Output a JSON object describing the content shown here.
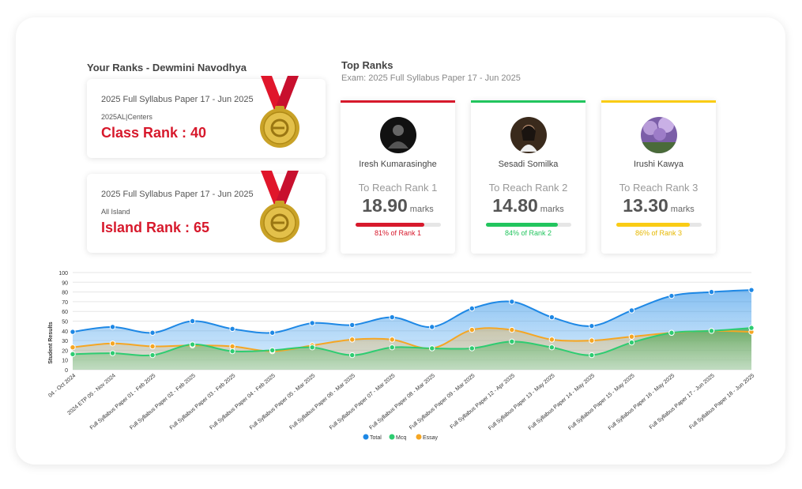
{
  "your_ranks": {
    "title": "Your Ranks - Dewmini Navodhya",
    "cards": [
      {
        "exam": "2025 Full Syllabus Paper 17 - Jun 2025",
        "category": "2025AL|Centers",
        "rank_label": "Class Rank : 40"
      },
      {
        "exam": "2025 Full Syllabus Paper 17 - Jun 2025",
        "category": "All Island",
        "rank_label": "Island Rank : 65"
      }
    ]
  },
  "top_ranks": {
    "title": "Top Ranks",
    "subtitle": "Exam: 2025 Full Syllabus Paper 17 - Jun 2025",
    "cards": [
      {
        "name": "Iresh Kumarasinghe",
        "reach": "To Reach Rank 1",
        "marks": "18.90",
        "unit": "marks",
        "percent_label": "81% of Rank 1",
        "percent": 81,
        "color": "#d7192c"
      },
      {
        "name": "Sesadi Somilka",
        "reach": "To Reach Rank 2",
        "marks": "14.80",
        "unit": "marks",
        "percent_label": "84% of Rank 2",
        "percent": 84,
        "color": "#22c55e"
      },
      {
        "name": "Irushi Kawya",
        "reach": "To Reach Rank 3",
        "marks": "13.30",
        "unit": "marks",
        "percent_label": "86% of Rank 3",
        "percent": 86,
        "color": "#facc15"
      }
    ]
  },
  "chart_data": {
    "type": "area",
    "title": "",
    "xlabel": "",
    "ylabel": "Student Results",
    "ylim": [
      0,
      100
    ],
    "yticks": [
      0,
      10,
      20,
      30,
      40,
      50,
      60,
      70,
      80,
      90,
      100
    ],
    "categories": [
      "04 - Oct 2024",
      "2024 ETP 05 - Nov 2024",
      "Full Syllabus Paper 01 - Feb 2025",
      "Full Syllabus Paper 02 - Feb 2025",
      "Full Syllabus Paper 03 - Feb 2025",
      "Full Syllabus Paper 04 - Feb 2025",
      "Full Syllabus Paper 05 - Mar 2025",
      "Full Syllabus Paper 06 - Mar 2025",
      "Full Syllabus Paper 07 - Mar 2025",
      "Full Syllabus Paper 08 - Mar 2025",
      "Full Syllabus Paper 09 - Mar 2025",
      "Full Syllabus Paper 12 - Apr 2025",
      "Full Syllabus Paper 13 - May 2025",
      "Full Syllabus Paper 14 - May 2025",
      "Full Syllabus Paper 15 - May 2025",
      "Full Syllabus Paper 16 - May 2025",
      "Full Syllabus Paper 17 - Jun 2025",
      "Full Syllabus Paper 18 - Jun 2025"
    ],
    "series": [
      {
        "name": "Total",
        "color": "#1e88e5",
        "values": [
          39,
          44,
          38,
          50,
          42,
          38,
          48,
          46,
          54,
          44,
          63,
          70,
          54,
          45,
          61,
          76,
          80,
          82
        ]
      },
      {
        "name": "Mcq",
        "color": "#2ecc71",
        "values": [
          16,
          17,
          15,
          26,
          19,
          20,
          23,
          15,
          23,
          22,
          22,
          29,
          23,
          15,
          28,
          38,
          40,
          43
        ]
      },
      {
        "name": "Essay",
        "color": "#f5a623",
        "values": [
          23,
          27,
          24,
          25,
          24,
          19,
          25,
          31,
          31,
          22,
          41,
          41,
          31,
          30,
          34,
          38,
          40,
          39
        ]
      }
    ],
    "legend": "bottom-center"
  }
}
